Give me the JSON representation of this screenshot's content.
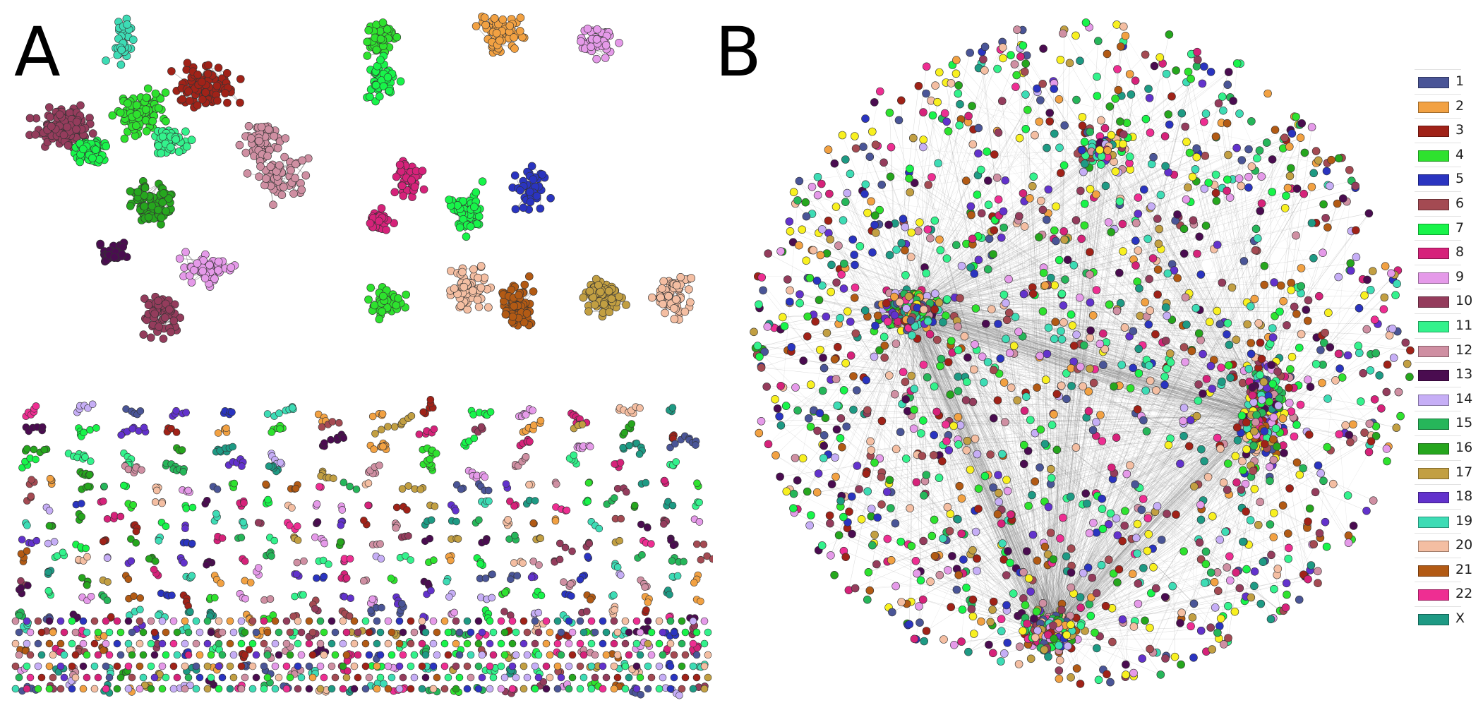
{
  "panels": [
    {
      "label": "A"
    },
    {
      "label": "B"
    }
  ],
  "legend": {
    "items": [
      {
        "label": "1",
        "color": "#4a5597"
      },
      {
        "label": "2",
        "color": "#f2a142"
      },
      {
        "label": "3",
        "color": "#a02218"
      },
      {
        "label": "4",
        "color": "#2ee22e"
      },
      {
        "label": "5",
        "color": "#2a34c0"
      },
      {
        "label": "6",
        "color": "#a44a52"
      },
      {
        "label": "7",
        "color": "#18f44a"
      },
      {
        "label": "8",
        "color": "#d6227a"
      },
      {
        "label": "9",
        "color": "#e59ae9"
      },
      {
        "label": "10",
        "color": "#943c5c"
      },
      {
        "label": "11",
        "color": "#33f28c"
      },
      {
        "label": "12",
        "color": "#cf8fa2"
      },
      {
        "label": "13",
        "color": "#4a0c50"
      },
      {
        "label": "14",
        "color": "#c6aef6"
      },
      {
        "label": "15",
        "color": "#26b65a"
      },
      {
        "label": "16",
        "color": "#26a61e"
      },
      {
        "label": "17",
        "color": "#c29f42"
      },
      {
        "label": "18",
        "color": "#6232cc"
      },
      {
        "label": "19",
        "color": "#3ddcb5"
      },
      {
        "label": "20",
        "color": "#f4bea2"
      },
      {
        "label": "21",
        "color": "#b25a14"
      },
      {
        "label": "22",
        "color": "#ee2e92"
      },
      {
        "label": "X",
        "color": "#1e9a84"
      }
    ]
  }
}
